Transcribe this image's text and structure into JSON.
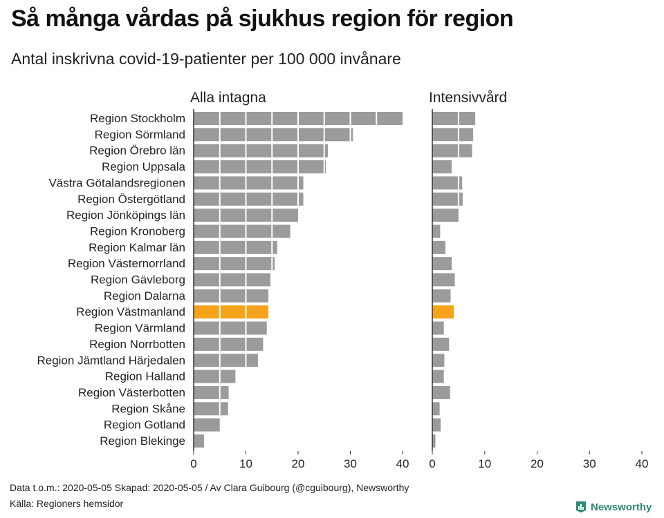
{
  "title": "Så många vårdas på sjukhus region för region",
  "subtitle": "Antal inskrivna covid-19-patienter per 100 000 invånare",
  "footer": {
    "line1": "Data t.o.m.: 2020-05-05 Skapad: 2020-05-05 / Av Clara Guibourg (@cguibourg), Newsworthy",
    "line2": "Källa: Regioners hemsidor"
  },
  "brand": {
    "name": "Newsworthy",
    "icon": "newsworthy-logo-icon"
  },
  "colors": {
    "bar": "#9b9b9b",
    "highlight": "#f4a31a",
    "axis": "#333333",
    "brand": "#2f8a78"
  },
  "chart_data": [
    {
      "type": "bar",
      "orientation": "horizontal",
      "panel_title": "Alla intagna",
      "categories": [
        "Region Stockholm",
        "Region Sörmland",
        "Region Örebro län",
        "Region Uppsala",
        "Västra Götalandsregionen",
        "Region Östergötland",
        "Region Jönköpings län",
        "Region Kronoberg",
        "Region Kalmar län",
        "Region Västernorrland",
        "Region Gävleborg",
        "Region Dalarna",
        "Region Västmanland",
        "Region Värmland",
        "Region Norrbotten",
        "Region Jämtland Härjedalen",
        "Region Halland",
        "Region Västerbotten",
        "Region Skåne",
        "Region Gotland",
        "Region Blekinge"
      ],
      "values": [
        40,
        30.5,
        25.7,
        25.3,
        21,
        21,
        20,
        18.5,
        16,
        15.5,
        14.7,
        14.3,
        14.3,
        14,
        13.3,
        12.3,
        8,
        6.7,
        6.6,
        5,
        2
      ],
      "highlight": "Region Västmanland",
      "xlim": [
        0,
        40
      ],
      "xticks": [
        0,
        10,
        20,
        30,
        40
      ]
    },
    {
      "type": "bar",
      "orientation": "horizontal",
      "panel_title": "Intensivvård",
      "categories": [
        "Region Stockholm",
        "Region Sörmland",
        "Region Örebro län",
        "Region Uppsala",
        "Västra Götalandsregionen",
        "Region Östergötland",
        "Region Jönköpings län",
        "Region Kronoberg",
        "Region Kalmar län",
        "Region Västernorrland",
        "Region Gävleborg",
        "Region Dalarna",
        "Region Västmanland",
        "Region Värmland",
        "Region Norrbotten",
        "Region Jämtland Härjedalen",
        "Region Halland",
        "Region Västerbotten",
        "Region Skåne",
        "Region Gotland",
        "Region Blekinge"
      ],
      "values": [
        8.2,
        7.8,
        7.6,
        3.7,
        5.7,
        5.8,
        5,
        1.5,
        2.5,
        3.7,
        4.3,
        3.5,
        4.1,
        2.2,
        3.2,
        2.3,
        2.2,
        3.4,
        1.4,
        1.6,
        0.6
      ],
      "highlight": "Region Västmanland",
      "xlim": [
        0,
        40
      ],
      "xticks": [
        0,
        10,
        20,
        30,
        40
      ]
    }
  ]
}
